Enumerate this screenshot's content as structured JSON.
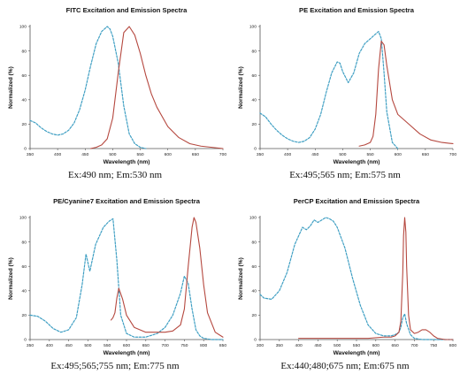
{
  "colors": {
    "excitation": "#3f9fc3",
    "emission": "#b5483f",
    "axis": "#555555"
  },
  "chart_data": [
    {
      "type": "line",
      "title": "FITC Excitation and Emission Spectra",
      "xlabel": "Wavelength (nm)",
      "ylabel": "Normalized (%)",
      "xlim": [
        350,
        700
      ],
      "ylim": [
        0,
        100
      ],
      "xticks": [
        350,
        400,
        450,
        500,
        550,
        600,
        650,
        700
      ],
      "yticks": [
        0,
        20,
        40,
        60,
        80,
        100
      ],
      "caption": "Ex:490 nm; Em:530 nm",
      "series": [
        {
          "kind": "excitation",
          "x": [
            350,
            360,
            370,
            380,
            390,
            400,
            410,
            420,
            430,
            440,
            450,
            460,
            470,
            480,
            490,
            495,
            500,
            510,
            520,
            530,
            540,
            550,
            560
          ],
          "y": [
            23,
            21,
            17,
            14,
            12,
            11,
            12,
            15,
            21,
            32,
            48,
            68,
            86,
            96,
            100,
            98,
            92,
            70,
            35,
            12,
            4,
            1,
            0
          ]
        },
        {
          "kind": "emission",
          "x": [
            460,
            470,
            480,
            490,
            500,
            510,
            520,
            530,
            540,
            550,
            560,
            570,
            580,
            600,
            620,
            640,
            660,
            680,
            700
          ],
          "y": [
            0,
            1,
            3,
            8,
            25,
            62,
            95,
            100,
            93,
            78,
            60,
            45,
            34,
            18,
            9,
            4,
            2,
            1,
            0
          ]
        }
      ]
    },
    {
      "type": "line",
      "title": "PE Excitation and Emission Spectra",
      "xlabel": "Wavelength (nm)",
      "ylabel": "Normalized (%)",
      "xlim": [
        350,
        700
      ],
      "ylim": [
        0,
        100
      ],
      "xticks": [
        350,
        400,
        450,
        500,
        550,
        600,
        650,
        700
      ],
      "yticks": [
        0,
        20,
        40,
        60,
        80,
        100
      ],
      "caption": "Ex:495;565 nm; Em:575 nm",
      "series": [
        {
          "kind": "excitation",
          "x": [
            350,
            360,
            370,
            380,
            390,
            400,
            410,
            420,
            430,
            440,
            450,
            460,
            470,
            480,
            490,
            495,
            500,
            510,
            520,
            530,
            540,
            550,
            560,
            565,
            570,
            575,
            580,
            590,
            600
          ],
          "y": [
            29,
            26,
            20,
            15,
            11,
            8,
            6,
            5,
            6,
            9,
            16,
            28,
            46,
            62,
            71,
            70,
            63,
            54,
            62,
            78,
            86,
            90,
            94,
            96,
            90,
            62,
            30,
            5,
            0
          ]
        },
        {
          "kind": "emission",
          "x": [
            530,
            540,
            550,
            555,
            560,
            565,
            570,
            575,
            580,
            590,
            600,
            610,
            620,
            640,
            660,
            680,
            700
          ],
          "y": [
            2,
            3,
            5,
            10,
            28,
            65,
            88,
            85,
            68,
            40,
            28,
            24,
            20,
            12,
            7,
            5,
            4
          ]
        }
      ]
    },
    {
      "type": "line",
      "title": "PE/Cyanine7 Excitation and Emission Spectra",
      "xlabel": "Wavelength (nm)",
      "ylabel": "Normalized (%)",
      "xlim": [
        350,
        850
      ],
      "ylim": [
        0,
        100
      ],
      "xticks": [
        350,
        400,
        450,
        500,
        550,
        600,
        650,
        700,
        750,
        800,
        850
      ],
      "yticks": [
        0,
        20,
        40,
        60,
        80,
        100
      ],
      "caption": "Ex:495;565;755 nm; Em:775 nm",
      "series": [
        {
          "kind": "excitation",
          "x": [
            350,
            370,
            390,
            410,
            430,
            450,
            470,
            485,
            495,
            505,
            520,
            540,
            555,
            565,
            575,
            585,
            600,
            620,
            650,
            680,
            700,
            720,
            740,
            750,
            760,
            770,
            780,
            790,
            800,
            820,
            840,
            850
          ],
          "y": [
            20,
            19,
            15,
            9,
            6,
            8,
            18,
            45,
            70,
            56,
            78,
            92,
            97,
            99,
            65,
            20,
            5,
            2,
            2,
            5,
            10,
            20,
            38,
            52,
            46,
            25,
            8,
            3,
            1,
            0,
            0,
            0
          ]
        },
        {
          "kind": "emission",
          "x": [
            560,
            565,
            570,
            575,
            580,
            590,
            600,
            620,
            650,
            680,
            700,
            720,
            740,
            750,
            760,
            770,
            775,
            780,
            790,
            800,
            810,
            830,
            850
          ],
          "y": [
            16,
            18,
            22,
            34,
            42,
            33,
            20,
            10,
            6,
            6,
            6,
            7,
            12,
            25,
            60,
            92,
            100,
            96,
            75,
            45,
            22,
            6,
            2
          ]
        }
      ]
    },
    {
      "type": "line",
      "title": "PerCP Excitation and Emission Spectra",
      "xlabel": "Wavelength (nm)",
      "ylabel": "Normalized (%)",
      "xlim": [
        300,
        800
      ],
      "ylim": [
        0,
        100
      ],
      "xticks": [
        300,
        350,
        400,
        450,
        500,
        550,
        600,
        650,
        700,
        750,
        800
      ],
      "yticks": [
        0,
        20,
        40,
        60,
        80,
        100
      ],
      "caption": "Ex:440;480;675 nm; Em:675 nm",
      "series": [
        {
          "kind": "excitation",
          "x": [
            300,
            310,
            330,
            350,
            370,
            390,
            410,
            420,
            430,
            440,
            450,
            460,
            470,
            480,
            490,
            500,
            520,
            540,
            560,
            580,
            600,
            620,
            640,
            650,
            660,
            665,
            670,
            675,
            680,
            690,
            700,
            720,
            750,
            800
          ],
          "y": [
            37,
            34,
            33,
            40,
            55,
            78,
            92,
            90,
            93,
            98,
            96,
            98,
            100,
            99,
            97,
            92,
            75,
            50,
            28,
            12,
            5,
            3,
            3,
            4,
            6,
            10,
            18,
            21,
            13,
            4,
            1,
            0,
            0,
            0
          ]
        },
        {
          "kind": "emission",
          "x": [
            400,
            500,
            580,
            620,
            640,
            650,
            660,
            665,
            670,
            672,
            675,
            678,
            680,
            685,
            690,
            700,
            710,
            720,
            730,
            740,
            750,
            760,
            780,
            800
          ],
          "y": [
            1,
            1,
            1,
            2,
            2,
            3,
            6,
            15,
            55,
            85,
            100,
            88,
            60,
            20,
            8,
            5,
            6,
            8,
            8,
            6,
            3,
            1,
            0,
            0
          ]
        }
      ]
    }
  ]
}
